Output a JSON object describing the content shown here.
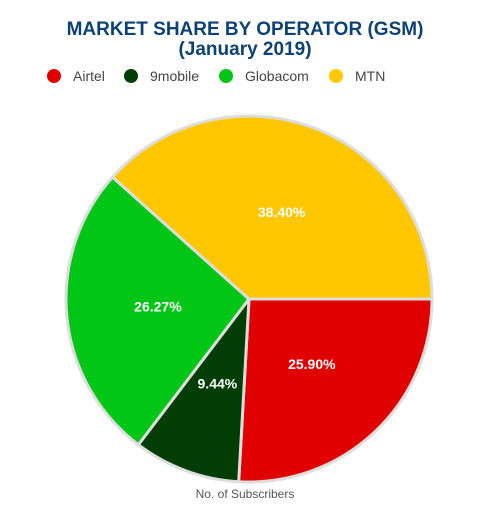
{
  "chart_data": {
    "type": "pie",
    "title_line1": "MARKET SHARE BY OPERATOR (GSM)",
    "title_line2": "(January 2019)",
    "xlabel": "No. of Subscribers",
    "legend_position": "top",
    "slices": [
      {
        "name": "Airtel",
        "value": 25.9,
        "label": "25.90%",
        "color": "#e00000"
      },
      {
        "name": "9mobile",
        "value": 9.44,
        "label": "9.44%",
        "color": "#013d04"
      },
      {
        "name": "Globacom",
        "value": 26.27,
        "label": "26.27%",
        "color": "#02c615"
      },
      {
        "name": "MTN",
        "value": 38.4,
        "label": "38.40%",
        "color": "#ffc700"
      }
    ]
  }
}
